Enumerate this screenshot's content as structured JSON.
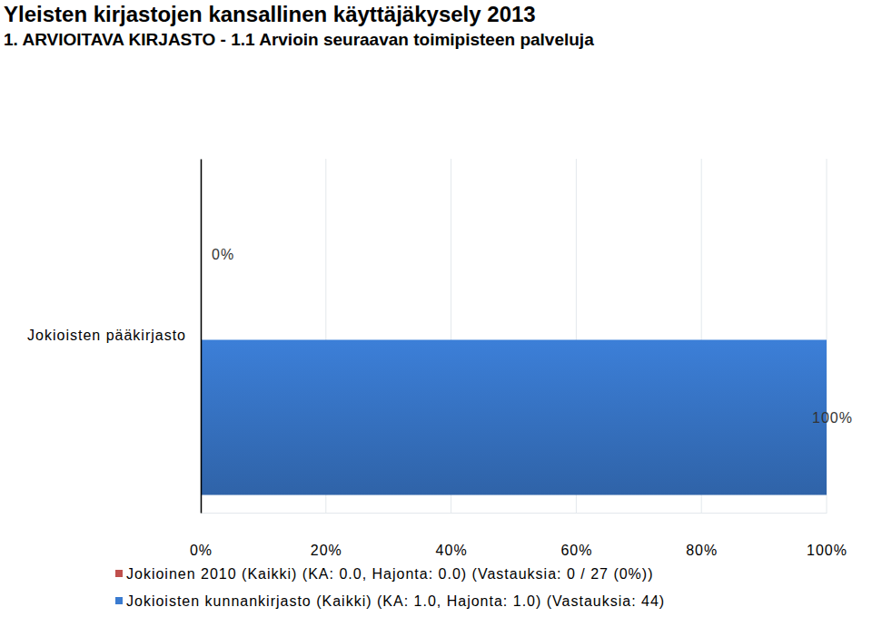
{
  "chart_data": {
    "type": "bar",
    "orientation": "horizontal",
    "title": "Yleisten kirjastojen kansallinen käyttäjäkysely 2013",
    "subtitle": "1. ARVIOITAVA KIRJASTO - 1.1 Arvioin seuraavan toimipisteen palveluja",
    "categories": [
      "Jokioisten pääkirjasto"
    ],
    "series": [
      {
        "name": "Jokioinen 2010 (Kaikki) (KA: 0.0, Hajonta: 0.0) (Vastauksia: 0 / 27 (0%))",
        "color": "#c0504d",
        "values": [
          0
        ],
        "value_labels": [
          "0%"
        ]
      },
      {
        "name": "Jokioisten kunnankirjasto (Kaikki) (KA: 1.0, Hajonta: 1.0) (Vastauksia: 44)",
        "color": "#3a7bd0",
        "values": [
          100
        ],
        "value_labels": [
          "100%"
        ]
      }
    ],
    "xlim": [
      0,
      100
    ],
    "xticks": [
      {
        "value": 0,
        "label": "0%"
      },
      {
        "value": 20,
        "label": "20%"
      },
      {
        "value": 40,
        "label": "40%"
      },
      {
        "value": 60,
        "label": "60%"
      },
      {
        "value": 80,
        "label": "80%"
      },
      {
        "value": 100,
        "label": "100%"
      }
    ],
    "grid": true,
    "data_labels": true,
    "legend": "bottom"
  }
}
